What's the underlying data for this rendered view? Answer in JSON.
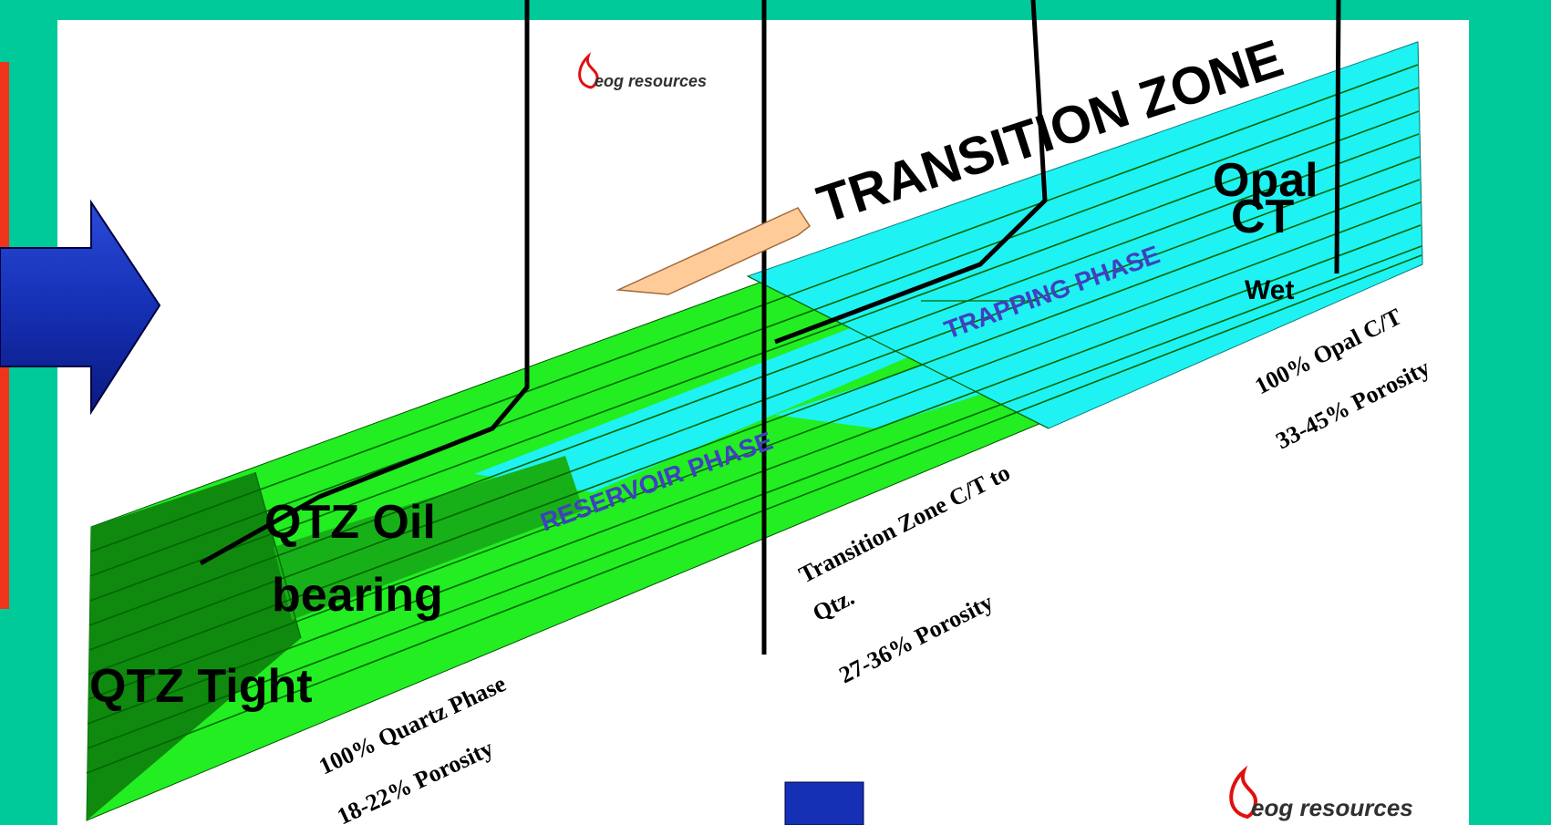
{
  "labels": {
    "transition_zone": "TRANSITION ZONE",
    "opal_line1": "Opal",
    "opal_line2": "CT",
    "wet": "Wet",
    "trapping_phase": "TRAPPING PHASE",
    "reservoir_phase": "RESERVOIR PHASE",
    "qtz_oil_line1": "QTZ Oil",
    "qtz_oil_line2": "bearing",
    "qtz_tight": "QTZ Tight",
    "quartz_phase": "100% Quartz Phase",
    "quartz_porosity": "18-22% Porosity",
    "transition_zone_ct_line1": "Transition Zone C/T to",
    "transition_zone_ct_line2": "Qtz.",
    "transition_porosity": "27-36% Porosity",
    "opal_ct": "100% Opal C/T",
    "opal_porosity": "33-45% Porosity"
  },
  "logo_text": "eog resources",
  "colors": {
    "background": "#00c99a",
    "panel": "#ffffff",
    "red_bar": "#f0341c",
    "green_light": "#22ee22",
    "green_dark": "#0f8a0f",
    "cyan": "#1ff2f2",
    "arrow_fill": "#ffcc99",
    "blue_arrow": "#1530b4",
    "phase_text": "#4040c0",
    "logo_red": "#e01010"
  }
}
